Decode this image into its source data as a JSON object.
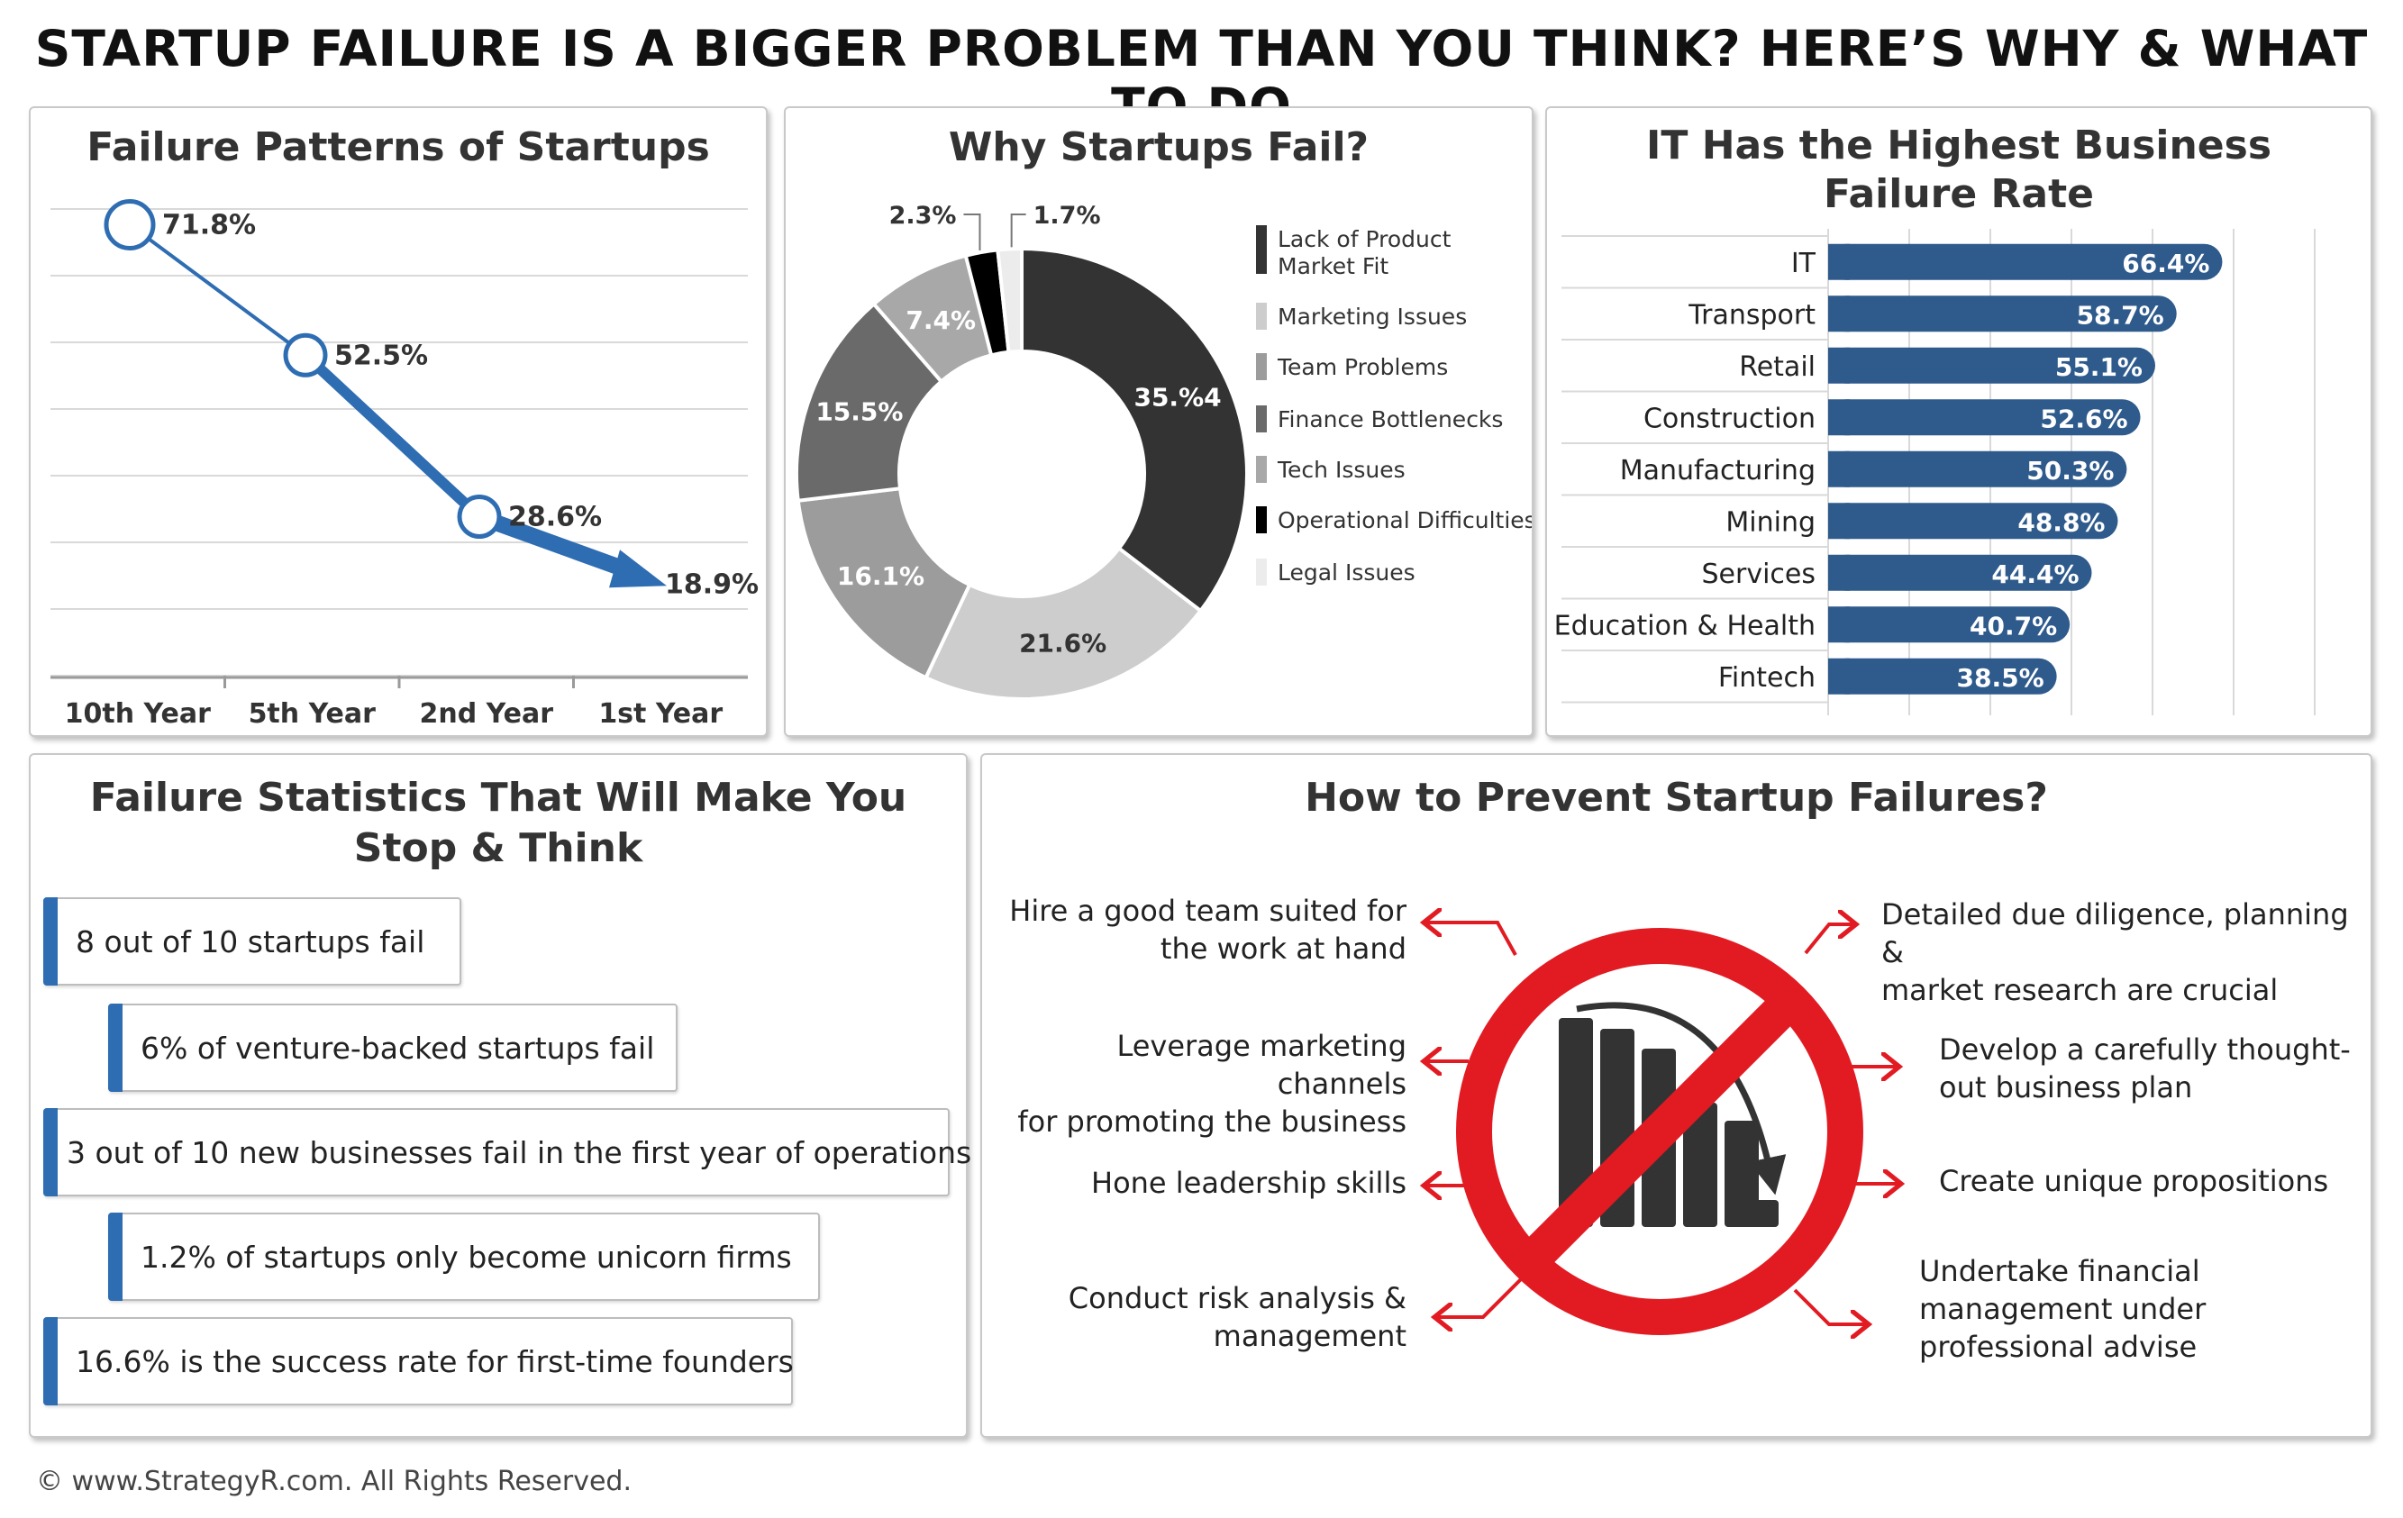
{
  "main_title": "STARTUP FAILURE IS A BIGGER PROBLEM THAN YOU THINK? HERE’S WHY & WHAT TO DO",
  "footer": "© www.StrategyR.com. All Rights Reserved.",
  "colors": {
    "blue": "#2f6db3",
    "navy": "#2e5a8c",
    "red": "#e21b23",
    "dark": "#333333"
  },
  "panels": {
    "patterns_title": "Failure Patterns of Startups",
    "why_title": "Why Startups Fail?",
    "it_title_line1": "IT Has the Highest Business",
    "it_title_line2": "Failure Rate",
    "stats_title_line1": "Failure Statistics That Will Make You",
    "stats_title_line2": "Stop & Think",
    "prevent_title": "How to Prevent Startup Failures?"
  },
  "chart_data": [
    {
      "type": "line",
      "title": "Failure Patterns of Startups",
      "categories": [
        "10th Year",
        "5th Year",
        "2nd Year",
        "1st Year"
      ],
      "values": [
        71.8,
        52.5,
        28.6,
        18.9
      ],
      "labels": [
        "71.8%",
        "52.5%",
        "28.6%",
        "18.9%"
      ],
      "ylim": [
        0,
        80
      ],
      "grid": true
    },
    {
      "type": "pie",
      "title": "Why Startups Fail?",
      "slices": [
        {
          "name": "Lack of Product Market Fit",
          "value": 35.4,
          "label": "35.%4",
          "color": "#333333",
          "text_color": "#ffffff"
        },
        {
          "name": "Marketing Issues",
          "value": 21.6,
          "label": "21.6%",
          "color": "#cdcdcd",
          "text_color": "#333333"
        },
        {
          "name": "Team Problems",
          "value": 16.1,
          "label": "16.1%",
          "color": "#9c9c9c",
          "text_color": "#ffffff"
        },
        {
          "name": "Finance Bottlenecks",
          "value": 15.5,
          "label": "15.5%",
          "color": "#6a6a6a",
          "text_color": "#ffffff"
        },
        {
          "name": "Tech Issues",
          "value": 7.4,
          "label": "7.4%",
          "color": "#a8a8a8",
          "text_color": "#ffffff"
        },
        {
          "name": "Operational Difficulties",
          "value": 2.3,
          "label": "2.3%",
          "color": "#000000",
          "text_color": "#333333"
        },
        {
          "name": "Legal Issues",
          "value": 1.7,
          "label": "1.7%",
          "color": "#ececec",
          "text_color": "#333333"
        }
      ],
      "legend_lines": [
        [
          "Lack of Product",
          "Market Fit"
        ],
        [
          "Marketing Issues"
        ],
        [
          "Team Problems"
        ],
        [
          "Finance Bottlenecks"
        ],
        [
          "Tech Issues"
        ],
        [
          "Operational Difficulties"
        ],
        [
          "Legal Issues"
        ]
      ],
      "legend_position": "right"
    },
    {
      "type": "bar",
      "orientation": "horizontal",
      "title": "IT Has the Highest Business Failure Rate",
      "categories": [
        "IT",
        "Transport",
        "Retail",
        "Construction",
        "Manufacturing",
        "Mining",
        "Services",
        "Education & Health",
        "Fintech"
      ],
      "values": [
        66.4,
        58.7,
        55.1,
        52.6,
        50.3,
        48.8,
        44.4,
        40.7,
        38.5
      ],
      "labels": [
        "66.4%",
        "58.7%",
        "55.1%",
        "52.6%",
        "50.3%",
        "48.8%",
        "44.4%",
        "40.7%",
        "38.5%"
      ],
      "xlim": [
        0,
        100
      ],
      "grid": true
    }
  ],
  "stats": [
    "8 out of 10 startups fail",
    "6% of venture-backed startups fail",
    "3 out of 10 new businesses fail in the first year of operations",
    "1.2% of startups only become unicorn firms",
    "16.6% is the success rate for first-time founders"
  ],
  "prevent": {
    "left": [
      [
        "Hire a good team suited for",
        "the work at hand"
      ],
      [
        "Leverage marketing channels",
        "for promoting the business"
      ],
      [
        "Hone leadership skills"
      ],
      [
        "Conduct risk analysis &",
        "management"
      ]
    ],
    "right": [
      [
        "Detailed due diligence, planning &",
        "market research are crucial"
      ],
      [
        "Develop a carefully thought-",
        "out business plan"
      ],
      [
        "Create unique propositions"
      ],
      [
        "Undertake financial",
        "management under",
        "professional advise"
      ]
    ],
    "center_icon": "no-declining-chart-icon"
  }
}
